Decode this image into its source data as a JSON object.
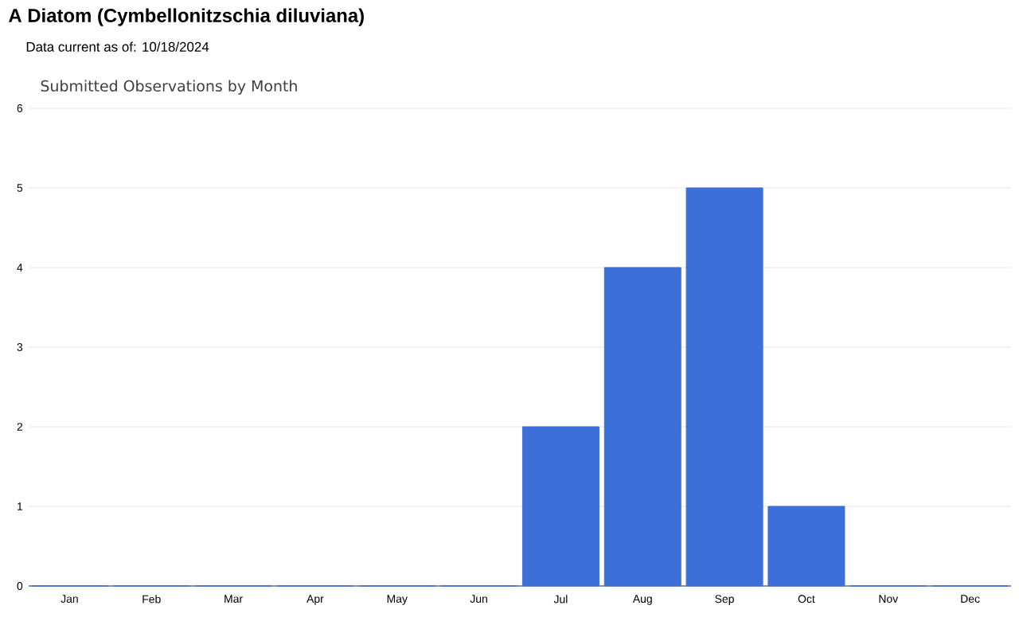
{
  "chart_data": {
    "type": "bar",
    "title": "A Diatom   (Cymbellonitzschia diluviana)",
    "subtitle": "Data current as of: 10/18/2024",
    "annotations": [
      "Submitted Observations by Month"
    ],
    "categories": [
      "Jan",
      "Feb",
      "Mar",
      "Apr",
      "May",
      "Jun",
      "Jul",
      "Aug",
      "Sep",
      "Oct",
      "Nov",
      "Dec"
    ],
    "values": [
      0,
      0,
      0,
      0,
      0,
      0,
      2,
      4,
      5,
      1,
      0,
      0
    ],
    "color": "#3d6fd9",
    "ylim": [
      0,
      6
    ],
    "yticks": [
      0,
      1,
      2,
      3,
      4,
      5,
      6
    ],
    "grid": "y"
  }
}
